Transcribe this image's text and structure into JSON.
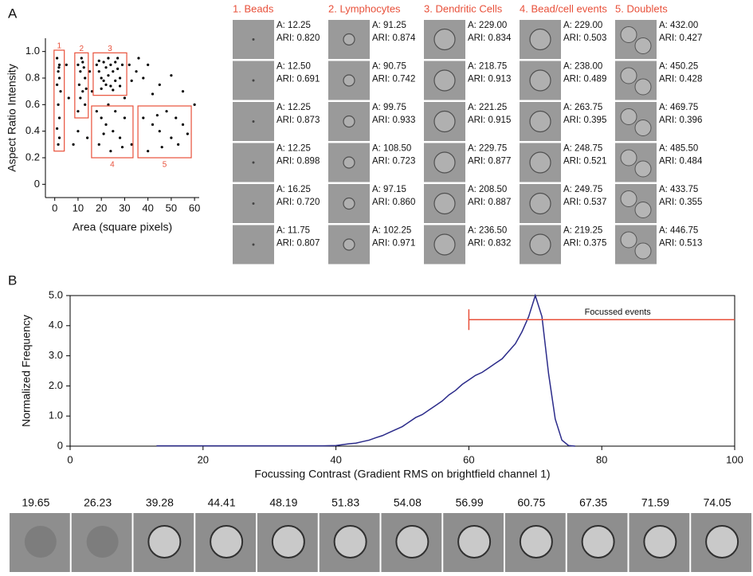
{
  "panel_labels": [
    "A",
    "B"
  ],
  "chart_data": [
    {
      "type": "scatter",
      "xlabel": "Area (square pixels)",
      "ylabel": "Aspect Ratio Intensity",
      "color": "#000000",
      "xlim": [
        -4,
        62
      ],
      "ylim": [
        -0.1,
        1.1
      ],
      "xticks": [
        0,
        10,
        20,
        30,
        40,
        50,
        60
      ],
      "yticks": [
        0,
        0.2,
        0.4,
        0.6,
        0.8,
        {
          "value": 1,
          "label": "1.0"
        }
      ],
      "x": [
        1,
        2,
        1.5,
        2,
        1,
        2.5,
        1.5,
        2,
        1,
        2,
        1.5,
        1.8,
        10,
        11,
        12,
        13,
        10.5,
        12,
        11,
        13,
        10,
        12.5,
        11.5,
        13.5,
        18,
        19,
        20,
        21,
        22,
        23,
        24,
        25,
        26,
        27,
        28,
        29,
        20,
        22,
        24,
        26,
        23,
        21,
        25,
        28,
        19,
        27,
        32,
        35,
        38,
        40,
        45,
        50,
        55,
        33,
        36,
        42,
        15,
        16,
        30,
        18,
        20,
        22,
        25,
        28,
        30,
        19,
        24,
        26,
        21,
        29,
        23,
        38,
        42,
        45,
        48,
        50,
        53,
        55,
        40,
        46,
        52,
        57,
        44,
        10,
        8,
        14,
        6,
        5,
        33,
        60
      ],
      "values": [
        0.95,
        0.9,
        0.85,
        0.8,
        0.75,
        0.7,
        0.6,
        0.5,
        0.42,
        0.35,
        0.3,
        0.88,
        0.9,
        0.85,
        0.92,
        0.8,
        0.75,
        0.7,
        0.65,
        0.6,
        0.55,
        0.88,
        0.95,
        0.72,
        0.9,
        0.85,
        0.8,
        0.92,
        0.88,
        0.82,
        0.9,
        0.85,
        0.78,
        0.87,
        0.8,
        0.9,
        0.72,
        0.75,
        0.74,
        0.92,
        0.95,
        0.78,
        0.71,
        0.74,
        0.93,
        0.95,
        0.9,
        0.85,
        0.8,
        0.9,
        0.75,
        0.82,
        0.7,
        0.78,
        0.95,
        0.68,
        0.85,
        0.7,
        0.65,
        0.55,
        0.5,
        0.45,
        0.4,
        0.35,
        0.5,
        0.3,
        0.25,
        0.55,
        0.38,
        0.28,
        0.6,
        0.5,
        0.45,
        0.4,
        0.55,
        0.35,
        0.3,
        0.45,
        0.25,
        0.28,
        0.5,
        0.38,
        0.52,
        0.4,
        0.3,
        0.35,
        0.65,
        0.9,
        0.3,
        0.6
      ],
      "gate_color": "#e8503a",
      "gates": [
        {
          "label": "1",
          "x": [
            -0.3,
            4.1
          ],
          "y": [
            0.25,
            1.01
          ]
        },
        {
          "label": "2",
          "x": [
            8.6,
            14.4
          ],
          "y": [
            0.5,
            0.99
          ]
        },
        {
          "label": "3",
          "x": [
            16.5,
            30.9
          ],
          "y": [
            0.67,
            0.99
          ]
        },
        {
          "label": "4",
          "x": [
            15.8,
            33.6
          ],
          "y": [
            0.2,
            0.59
          ]
        },
        {
          "label": "5",
          "x": [
            35.7,
            58.6
          ],
          "y": [
            0.2,
            0.59
          ]
        }
      ]
    },
    {
      "type": "line",
      "xlabel": "Focussing Contrast (Gradient RMS on brightfield channel 1)",
      "ylabel": "Normalized Frequency",
      "color": "#2b2b8a",
      "xlim": [
        0,
        100
      ],
      "ylim": [
        0,
        5
      ],
      "xticks": [
        0,
        20,
        40,
        60,
        80,
        100
      ],
      "yticks": [
        0,
        {
          "value": 1,
          "label": "1.0"
        },
        {
          "value": 2,
          "label": "2.0"
        },
        {
          "value": 3,
          "label": "3.0"
        },
        {
          "value": 4,
          "label": "4.0"
        },
        {
          "value": 5,
          "label": "5.0"
        }
      ],
      "x": [
        13,
        26,
        30,
        35,
        38,
        40,
        41,
        42,
        43,
        44,
        45,
        46,
        47,
        48,
        49,
        50,
        51,
        52,
        53,
        54,
        55,
        56,
        57,
        58,
        59,
        60,
        61,
        62,
        63,
        64,
        65,
        66,
        67,
        68,
        69,
        70,
        71,
        72,
        73,
        74,
        75,
        76
      ],
      "values": [
        0.01,
        0.01,
        0.01,
        0.01,
        0.01,
        0.02,
        0.05,
        0.08,
        0.1,
        0.15,
        0.2,
        0.28,
        0.35,
        0.45,
        0.55,
        0.65,
        0.8,
        0.95,
        1.05,
        1.2,
        1.35,
        1.5,
        1.7,
        1.85,
        2.05,
        2.2,
        2.35,
        2.45,
        2.6,
        2.75,
        2.9,
        3.15,
        3.4,
        3.8,
        4.3,
        5.0,
        4.3,
        2.4,
        0.9,
        0.2,
        0.02,
        0
      ],
      "gate": {
        "label": "Focussed events",
        "x": [
          60,
          100
        ],
        "y": 4.2,
        "color": "#e8503a"
      }
    }
  ],
  "gallery": {
    "columns": [
      {
        "title": "1. Beads",
        "cells": [
          [
            "A: 12.25",
            "ARI: 0.820"
          ],
          [
            "A: 12.50",
            "ARI: 0.691"
          ],
          [
            "A: 12.25",
            "ARI: 0.873"
          ],
          [
            "A: 12.25",
            "ARI: 0.898"
          ],
          [
            "A: 16.25",
            "ARI: 0.720"
          ],
          [
            "A: 11.75",
            "ARI: 0.807"
          ]
        ]
      },
      {
        "title": "2. Lymphocytes",
        "cells": [
          [
            "A: 91.25",
            "ARI: 0.874"
          ],
          [
            "A: 90.75",
            "ARI: 0.742"
          ],
          [
            "A: 99.75",
            "ARI: 0.933"
          ],
          [
            "A: 108.50",
            "ARI: 0.723"
          ],
          [
            "A: 97.15",
            "ARI: 0.860"
          ],
          [
            "A: 102.25",
            "ARI: 0.971"
          ]
        ]
      },
      {
        "title": "3. Dendritic Cells",
        "cells": [
          [
            "A: 229.00",
            "ARI: 0.834"
          ],
          [
            "A: 218.75",
            "ARI: 0.913"
          ],
          [
            "A: 221.25",
            "ARI: 0.915"
          ],
          [
            "A: 229.75",
            "ARI: 0.877"
          ],
          [
            "A: 208.50",
            "ARI: 0.887"
          ],
          [
            "A: 236.50",
            "ARI: 0.832"
          ]
        ]
      },
      {
        "title": "4. Bead/cell events",
        "cells": [
          [
            "A: 229.00",
            "ARI: 0.503"
          ],
          [
            "A: 238.00",
            "ARI: 0.489"
          ],
          [
            "A: 263.75",
            "ARI: 0.395"
          ],
          [
            "A: 248.75",
            "ARI: 0.521"
          ],
          [
            "A: 249.75",
            "ARI: 0.537"
          ],
          [
            "A: 219.25",
            "ARI: 0.375"
          ]
        ]
      },
      {
        "title": "5. Doublets",
        "cells": [
          [
            "A: 432.00",
            "ARI: 0.427"
          ],
          [
            "A: 450.25",
            "ARI: 0.428"
          ],
          [
            "A: 469.75",
            "ARI: 0.396"
          ],
          [
            "A: 485.50",
            "ARI: 0.484"
          ],
          [
            "A: 433.75",
            "ARI: 0.355"
          ],
          [
            "A: 446.75",
            "ARI: 0.513"
          ]
        ]
      }
    ]
  },
  "strip": {
    "labels": [
      19.65,
      26.23,
      39.28,
      44.41,
      48.19,
      51.83,
      54.08,
      56.99,
      60.75,
      67.35,
      71.59,
      74.05
    ]
  }
}
